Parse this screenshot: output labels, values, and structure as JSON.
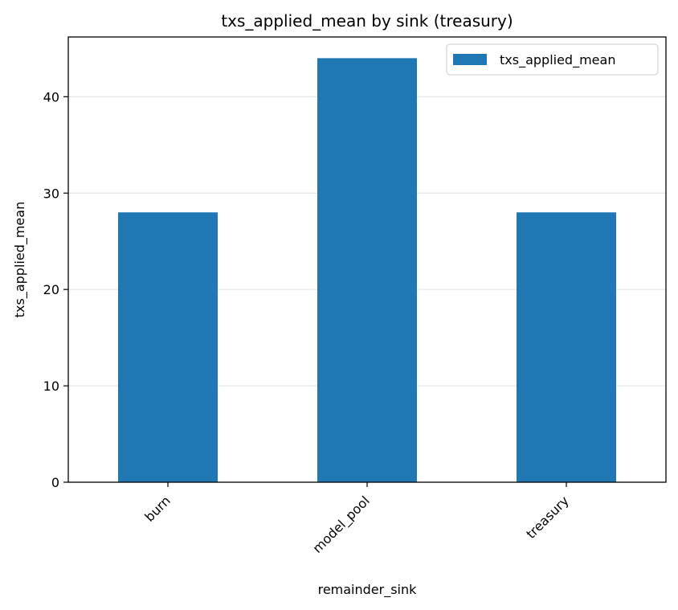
{
  "chart_data": {
    "type": "bar",
    "title": "txs_applied_mean by sink (treasury)",
    "xlabel": "remainder_sink",
    "ylabel": "txs_applied_mean",
    "categories": [
      "burn",
      "model_pool",
      "treasury"
    ],
    "series": [
      {
        "name": "txs_applied_mean",
        "values": [
          28,
          44,
          28
        ],
        "color": "#1f77b4"
      }
    ],
    "ylim": [
      0,
      46.2
    ],
    "yticks": [
      0,
      10,
      20,
      30,
      40
    ],
    "grid": "y",
    "legend_position": "top-right"
  }
}
